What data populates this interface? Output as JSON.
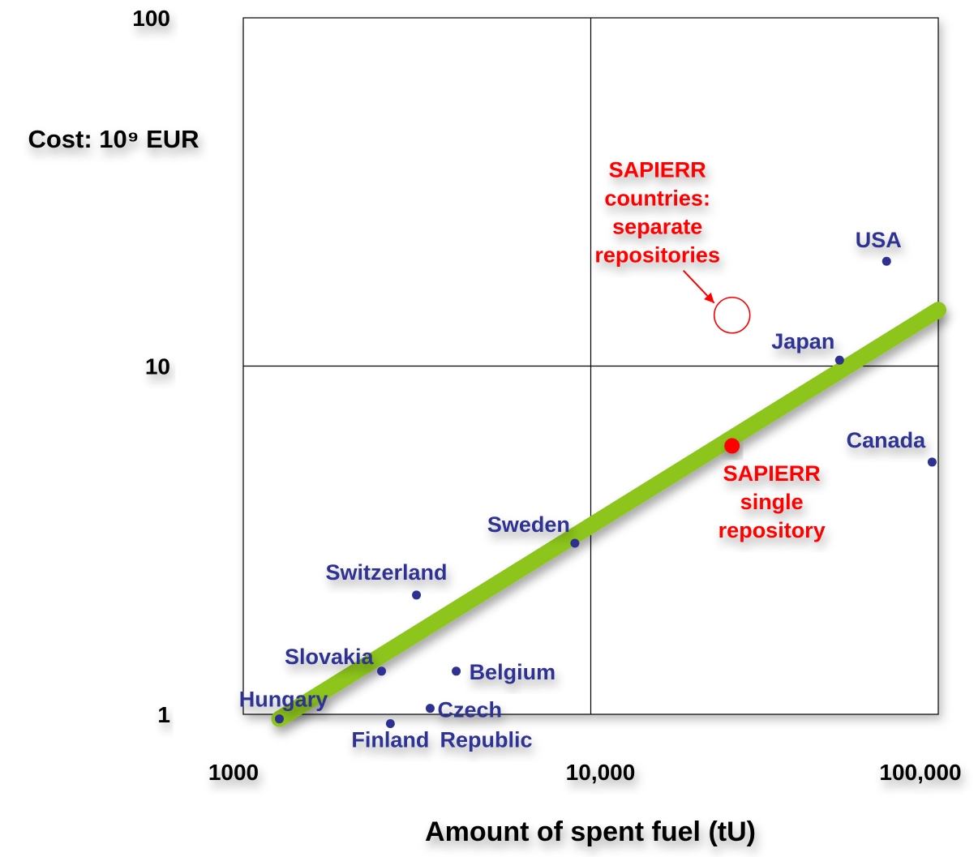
{
  "chart_data": {
    "type": "scatter",
    "xscale": "log",
    "yscale": "log",
    "xlim": [
      1000,
      100000
    ],
    "ylim": [
      1,
      100
    ],
    "xlabel": "Amount of spent fuel (tU)",
    "ylabel": "Cost: 10⁹ EUR",
    "x_ticks": [
      {
        "value": 1000,
        "label": "1000"
      },
      {
        "value": 10000,
        "label": "10,000"
      },
      {
        "value": 100000,
        "label": "100,000"
      }
    ],
    "y_ticks": [
      {
        "value": 1,
        "label": "1"
      },
      {
        "value": 10,
        "label": "10"
      },
      {
        "value": 100,
        "label": "100"
      }
    ],
    "grid": true,
    "points": [
      {
        "label": "Hungary",
        "x": 1270,
        "y": 0.97
      },
      {
        "label": "Finland",
        "x": 2650,
        "y": 0.94
      },
      {
        "label": "Czech Republic",
        "x": 3450,
        "y": 1.04
      },
      {
        "label": "Slovakia",
        "x": 2500,
        "y": 1.33
      },
      {
        "label": "Belgium",
        "x": 4100,
        "y": 1.33
      },
      {
        "label": "Switzerland",
        "x": 3150,
        "y": 2.2
      },
      {
        "label": "Sweden",
        "x": 9000,
        "y": 3.1
      },
      {
        "label": "Japan",
        "x": 52000,
        "y": 10.4
      },
      {
        "label": "Canada",
        "x": 96000,
        "y": 5.3
      },
      {
        "label": "USA",
        "x": 71000,
        "y": 20.0
      }
    ],
    "sapierr_single": {
      "label": "SAPIERR single repository",
      "x": 25500,
      "y": 5.9
    },
    "sapierr_separate": {
      "label": "SAPIERR countries: separate repositories",
      "x": 25500,
      "y": 14.0
    },
    "trend_line": {
      "x": [
        1270,
        100000
      ],
      "y": [
        0.97,
        14.5
      ]
    },
    "colors": {
      "country": "#2e3192",
      "sapierr": "#ff0000",
      "trend": "#8dc51f",
      "grid": "#000000",
      "axis_text": "#000000"
    }
  }
}
